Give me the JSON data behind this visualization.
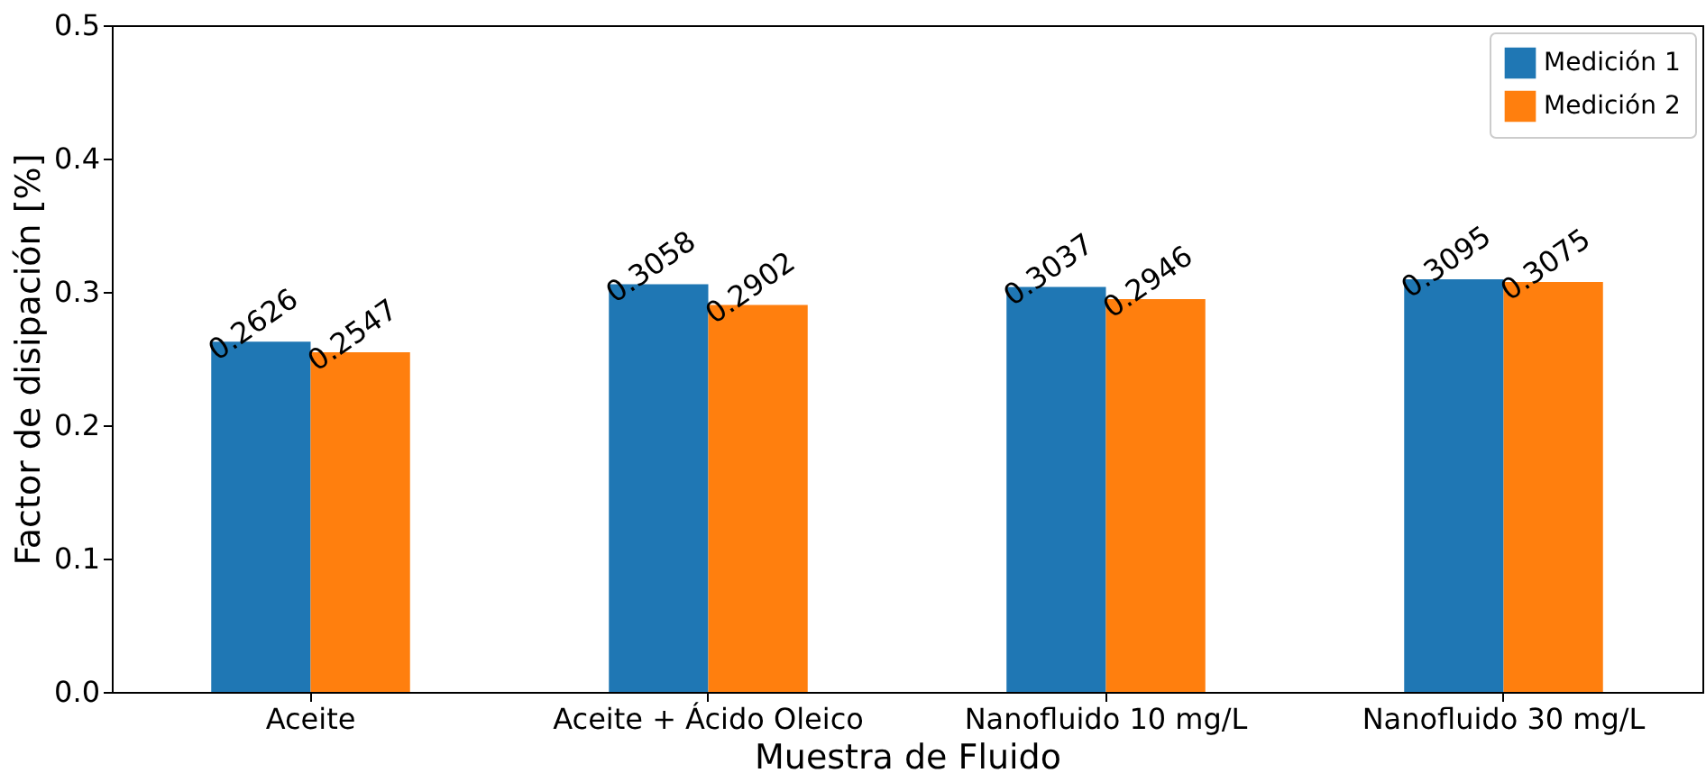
{
  "chart_data": {
    "type": "bar",
    "xlabel": "Muestra de Fluido",
    "ylabel": "Factor de disipación [%]",
    "categories": [
      "Aceite",
      "Aceite + Ácido Oleico",
      "Nanofluido 10 mg/L",
      "Nanofluido 30 mg/L"
    ],
    "series": [
      {
        "name": "Medición 1",
        "color": "#1f77b4",
        "values": [
          0.2626,
          0.3058,
          0.3037,
          0.3095
        ]
      },
      {
        "name": "Medición 2",
        "color": "#ff7f0e",
        "values": [
          0.2547,
          0.2902,
          0.2946,
          0.3075
        ]
      }
    ],
    "ylim": [
      0,
      0.5
    ],
    "yticks": [
      {
        "value": 0,
        "label": "0.0"
      },
      {
        "value": 0.1,
        "label": "0.1"
      },
      {
        "value": 0.2,
        "label": "0.2"
      },
      {
        "value": 0.3,
        "label": "0.3"
      },
      {
        "value": 0.4,
        "label": "0.4"
      },
      {
        "value": 0.5,
        "label": "0.5"
      }
    ],
    "data_labels": true,
    "grid": false,
    "legend": "top right"
  }
}
